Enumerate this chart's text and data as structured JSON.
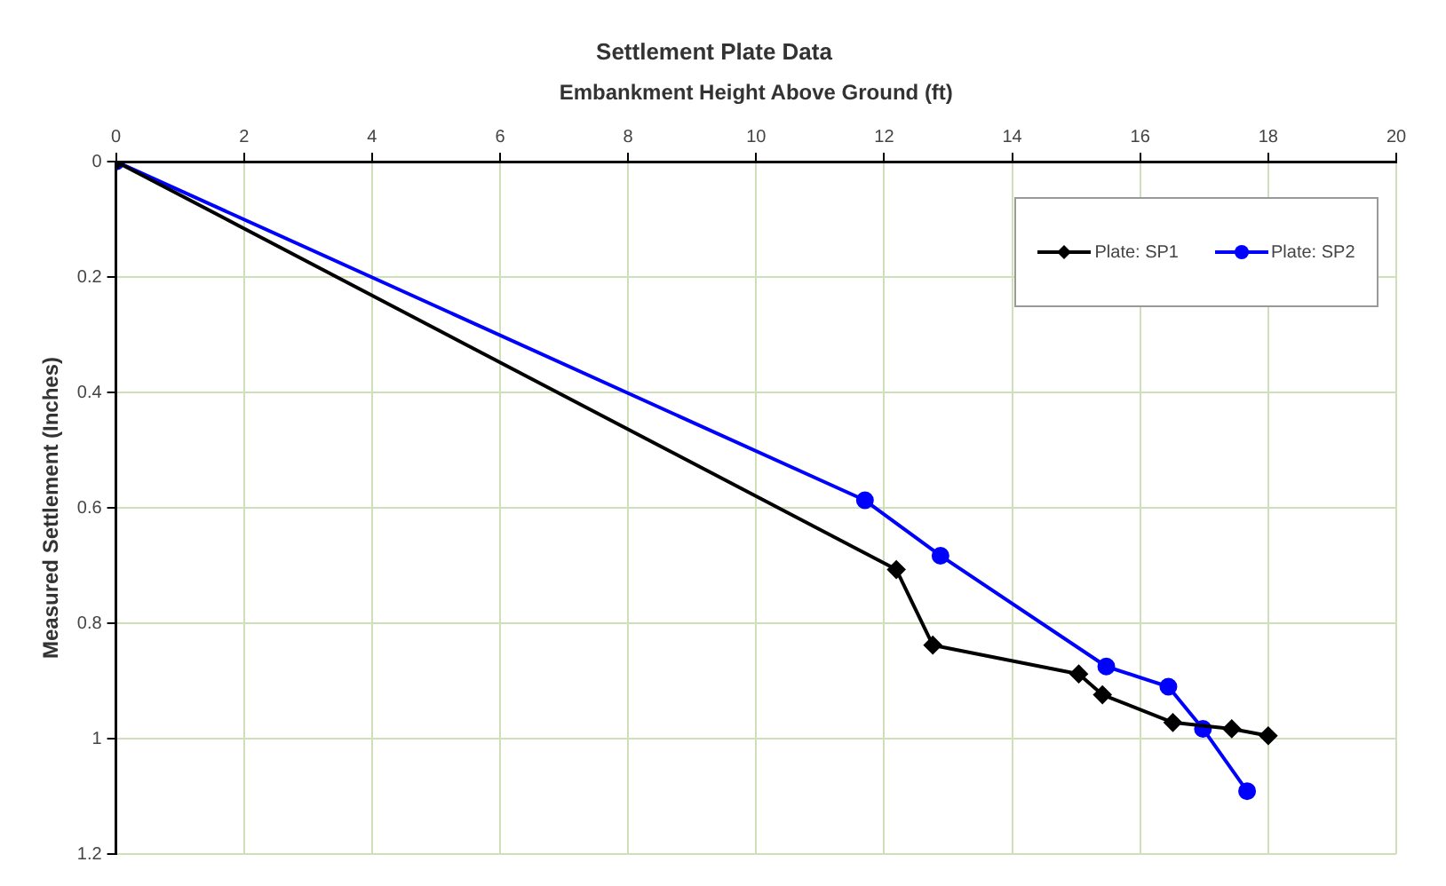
{
  "chart_data": {
    "type": "line",
    "title": "Settlement Plate Data",
    "xlabel": "Embankment Height Above Ground (ft)",
    "ylabel": "Measured Settlement (Inches)",
    "xlim": [
      0,
      20
    ],
    "xticks": [
      0,
      2,
      4,
      6,
      8,
      10,
      12,
      14,
      16,
      18,
      20
    ],
    "ylim": [
      1.2,
      0
    ],
    "yticks": [
      0,
      0.2,
      0.4,
      0.6,
      0.8,
      1,
      1.2
    ],
    "grid": true,
    "legend": "top right",
    "line_style": "solid",
    "series": [
      {
        "name": "Plate: SP1",
        "color": "#000000",
        "marker": "diamond",
        "x": [
          0,
          12.19,
          12.76,
          15.04,
          15.41,
          16.51,
          17.43,
          18.0
        ],
        "values": [
          0,
          0.707,
          0.838,
          0.888,
          0.924,
          0.972,
          0.983,
          0.995
        ]
      },
      {
        "name": "Plate: SP2",
        "color": "#0000ff",
        "marker": "circle",
        "x": [
          0,
          11.7,
          12.88,
          15.47,
          16.44,
          16.98,
          17.67
        ],
        "values": [
          0,
          0.587,
          0.683,
          0.875,
          0.91,
          0.983,
          1.091
        ]
      }
    ]
  }
}
